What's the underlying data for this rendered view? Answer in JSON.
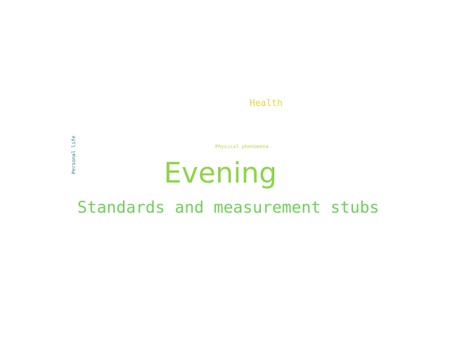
{
  "word_cloud": {
    "words": [
      {
        "text": "Health",
        "color": "#e8d43a",
        "orientation": "horizontal"
      },
      {
        "text": "Physical phenomena",
        "color": "#bcd64a",
        "orientation": "horizontal"
      },
      {
        "text": "Personal life",
        "color": "#2f7f8e",
        "orientation": "vertical"
      },
      {
        "text": "Evening",
        "color": "#8cd447",
        "orientation": "horizontal"
      },
      {
        "text": "Standards and measurement stubs",
        "color": "#6fcf5a",
        "orientation": "horizontal"
      }
    ]
  }
}
